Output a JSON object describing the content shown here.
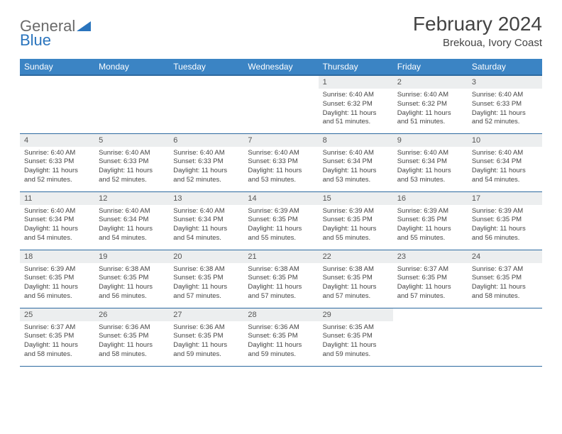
{
  "brand": {
    "part1": "General",
    "part2": "Blue"
  },
  "title": "February 2024",
  "location": "Brekoua, Ivory Coast",
  "colors": {
    "header_bg": "#3b84c4",
    "header_border": "#2d6aa0",
    "daynum_bg": "#eceeef",
    "logo_accent": "#2a74bd",
    "logo_gray": "#6a6a6a"
  },
  "weekdays": [
    "Sunday",
    "Monday",
    "Tuesday",
    "Wednesday",
    "Thursday",
    "Friday",
    "Saturday"
  ],
  "weeks": [
    [
      {
        "empty": true
      },
      {
        "empty": true
      },
      {
        "empty": true
      },
      {
        "empty": true
      },
      {
        "n": "1",
        "sr": "6:40 AM",
        "ss": "6:32 PM",
        "dl": "11 hours and 51 minutes."
      },
      {
        "n": "2",
        "sr": "6:40 AM",
        "ss": "6:32 PM",
        "dl": "11 hours and 51 minutes."
      },
      {
        "n": "3",
        "sr": "6:40 AM",
        "ss": "6:33 PM",
        "dl": "11 hours and 52 minutes."
      }
    ],
    [
      {
        "n": "4",
        "sr": "6:40 AM",
        "ss": "6:33 PM",
        "dl": "11 hours and 52 minutes."
      },
      {
        "n": "5",
        "sr": "6:40 AM",
        "ss": "6:33 PM",
        "dl": "11 hours and 52 minutes."
      },
      {
        "n": "6",
        "sr": "6:40 AM",
        "ss": "6:33 PM",
        "dl": "11 hours and 52 minutes."
      },
      {
        "n": "7",
        "sr": "6:40 AM",
        "ss": "6:33 PM",
        "dl": "11 hours and 53 minutes."
      },
      {
        "n": "8",
        "sr": "6:40 AM",
        "ss": "6:34 PM",
        "dl": "11 hours and 53 minutes."
      },
      {
        "n": "9",
        "sr": "6:40 AM",
        "ss": "6:34 PM",
        "dl": "11 hours and 53 minutes."
      },
      {
        "n": "10",
        "sr": "6:40 AM",
        "ss": "6:34 PM",
        "dl": "11 hours and 54 minutes."
      }
    ],
    [
      {
        "n": "11",
        "sr": "6:40 AM",
        "ss": "6:34 PM",
        "dl": "11 hours and 54 minutes."
      },
      {
        "n": "12",
        "sr": "6:40 AM",
        "ss": "6:34 PM",
        "dl": "11 hours and 54 minutes."
      },
      {
        "n": "13",
        "sr": "6:40 AM",
        "ss": "6:34 PM",
        "dl": "11 hours and 54 minutes."
      },
      {
        "n": "14",
        "sr": "6:39 AM",
        "ss": "6:35 PM",
        "dl": "11 hours and 55 minutes."
      },
      {
        "n": "15",
        "sr": "6:39 AM",
        "ss": "6:35 PM",
        "dl": "11 hours and 55 minutes."
      },
      {
        "n": "16",
        "sr": "6:39 AM",
        "ss": "6:35 PM",
        "dl": "11 hours and 55 minutes."
      },
      {
        "n": "17",
        "sr": "6:39 AM",
        "ss": "6:35 PM",
        "dl": "11 hours and 56 minutes."
      }
    ],
    [
      {
        "n": "18",
        "sr": "6:39 AM",
        "ss": "6:35 PM",
        "dl": "11 hours and 56 minutes."
      },
      {
        "n": "19",
        "sr": "6:38 AM",
        "ss": "6:35 PM",
        "dl": "11 hours and 56 minutes."
      },
      {
        "n": "20",
        "sr": "6:38 AM",
        "ss": "6:35 PM",
        "dl": "11 hours and 57 minutes."
      },
      {
        "n": "21",
        "sr": "6:38 AM",
        "ss": "6:35 PM",
        "dl": "11 hours and 57 minutes."
      },
      {
        "n": "22",
        "sr": "6:38 AM",
        "ss": "6:35 PM",
        "dl": "11 hours and 57 minutes."
      },
      {
        "n": "23",
        "sr": "6:37 AM",
        "ss": "6:35 PM",
        "dl": "11 hours and 57 minutes."
      },
      {
        "n": "24",
        "sr": "6:37 AM",
        "ss": "6:35 PM",
        "dl": "11 hours and 58 minutes."
      }
    ],
    [
      {
        "n": "25",
        "sr": "6:37 AM",
        "ss": "6:35 PM",
        "dl": "11 hours and 58 minutes."
      },
      {
        "n": "26",
        "sr": "6:36 AM",
        "ss": "6:35 PM",
        "dl": "11 hours and 58 minutes."
      },
      {
        "n": "27",
        "sr": "6:36 AM",
        "ss": "6:35 PM",
        "dl": "11 hours and 59 minutes."
      },
      {
        "n": "28",
        "sr": "6:36 AM",
        "ss": "6:35 PM",
        "dl": "11 hours and 59 minutes."
      },
      {
        "n": "29",
        "sr": "6:35 AM",
        "ss": "6:35 PM",
        "dl": "11 hours and 59 minutes."
      },
      {
        "empty": true
      },
      {
        "empty": true
      }
    ]
  ]
}
